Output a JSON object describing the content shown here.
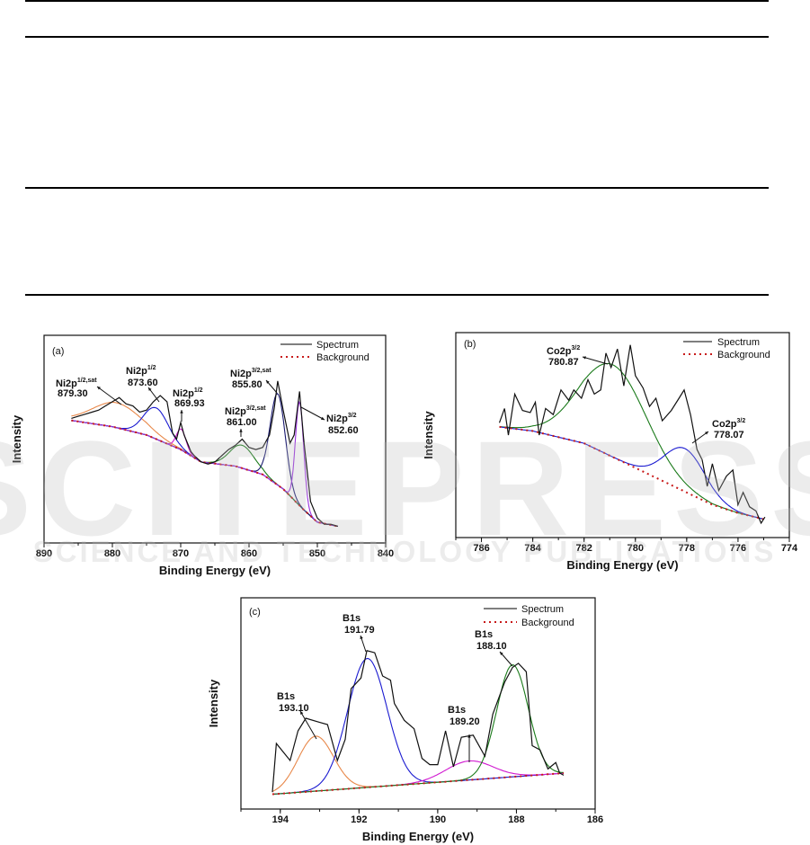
{
  "table": {
    "rules": 4
  },
  "watermark": {
    "main": "SCITEPRESS",
    "sub": "SCIENCE AND TECHNOLOGY PUBLICATIONS"
  },
  "chart_data": [
    {
      "type": "line",
      "panel": "(a)",
      "xlabel": "Binding Energy (eV)",
      "ylabel": "Intensity",
      "xlim": [
        890,
        840
      ],
      "ylim": [
        0,
        100
      ],
      "xticks": [
        "890",
        "880",
        "870",
        "860",
        "850",
        "840"
      ],
      "xtick_values": [
        890,
        880,
        870,
        860,
        850,
        840
      ],
      "legend": {
        "placement": "top-right",
        "spectrum": "Spectrum",
        "background": "Background"
      },
      "data_range": [
        886,
        847
      ],
      "background": [
        [
          886,
          59
        ],
        [
          880,
          56
        ],
        [
          875,
          52
        ],
        [
          870,
          45
        ],
        [
          867,
          39
        ],
        [
          862,
          37
        ],
        [
          858,
          33
        ],
        [
          855,
          26
        ],
        [
          852,
          16
        ],
        [
          850,
          10
        ],
        [
          847,
          8
        ]
      ],
      "components": [
        {
          "center": 879.3,
          "amp": 12,
          "sigma": 3.6,
          "color": "#e8884a"
        },
        {
          "center": 873.6,
          "amp": 15,
          "sigma": 1.8,
          "color": "#1a1ad0"
        },
        {
          "center": 869.93,
          "amp": 10,
          "sigma": 0.7,
          "color": "#d01ad0"
        },
        {
          "center": 861.0,
          "amp": 11,
          "sigma": 1.8,
          "color": "#1a7a1a"
        },
        {
          "center": 855.8,
          "amp": 44,
          "sigma": 1.1,
          "color": "#1a1a70"
        },
        {
          "center": 852.6,
          "amp": 50,
          "sigma": 0.6,
          "color": "#9a30e0"
        }
      ],
      "spectrum": [
        [
          886,
          60
        ],
        [
          885,
          61
        ],
        [
          884,
          62
        ],
        [
          883,
          63
        ],
        [
          882,
          64
        ],
        [
          881,
          66
        ],
        [
          880,
          68
        ],
        [
          879,
          70
        ],
        [
          878,
          67
        ],
        [
          877,
          66
        ],
        [
          876,
          63
        ],
        [
          875,
          64
        ],
        [
          874,
          68
        ],
        [
          873,
          71
        ],
        [
          872,
          68
        ],
        [
          871.2,
          53
        ],
        [
          870.6,
          50
        ],
        [
          870,
          58
        ],
        [
          869.5,
          52
        ],
        [
          868.5,
          44
        ],
        [
          868,
          42
        ],
        [
          867,
          39
        ],
        [
          866,
          38
        ],
        [
          865,
          39
        ],
        [
          864,
          42
        ],
        [
          863,
          45
        ],
        [
          862,
          47
        ],
        [
          861,
          50
        ],
        [
          860,
          46
        ],
        [
          859,
          45
        ],
        [
          858,
          46
        ],
        [
          857,
          52
        ],
        [
          856.3,
          65
        ],
        [
          855.8,
          78
        ],
        [
          855,
          64
        ],
        [
          854,
          48
        ],
        [
          853.4,
          52
        ],
        [
          852.6,
          73
        ],
        [
          852,
          50
        ],
        [
          851,
          20
        ],
        [
          850,
          12
        ],
        [
          849,
          9
        ],
        [
          848,
          9
        ],
        [
          847,
          8
        ]
      ],
      "annotations": [
        {
          "label": "Ni2p",
          "sup": "1/2,sat",
          "value": "879.30"
        },
        {
          "label": "Ni2p",
          "sup": "1/2",
          "value": "873.60"
        },
        {
          "label": "Ni2p",
          "sup": "1/2",
          "value": "869.93"
        },
        {
          "label": "Ni2p",
          "sup": "3/2,sat",
          "value": "855.80"
        },
        {
          "label": "Ni2p",
          "sup": "3/2,sat",
          "value": "861.00"
        },
        {
          "label": "Ni2p",
          "sup": "3/2",
          "value": "852.60"
        }
      ]
    },
    {
      "type": "line",
      "panel": "(b)",
      "xlabel": "Binding Energy (eV)",
      "ylabel": "Intensity",
      "xlim": [
        787,
        774
      ],
      "ylim": [
        0,
        100
      ],
      "xticks": [
        "786",
        "784",
        "782",
        "780",
        "778",
        "776",
        "774"
      ],
      "xtick_values": [
        786,
        784,
        782,
        780,
        778,
        776,
        774
      ],
      "legend": {
        "placement": "top-right",
        "spectrum": "Spectrum",
        "background": "Background"
      },
      "data_range": [
        785.3,
        775
      ],
      "background": [
        [
          785.3,
          54
        ],
        [
          784,
          52
        ],
        [
          782,
          46
        ],
        [
          780,
          34
        ],
        [
          778,
          22
        ],
        [
          777,
          16
        ],
        [
          776,
          12
        ],
        [
          775,
          9
        ]
      ],
      "components": [
        {
          "center": 780.87,
          "amp": 45,
          "sigma": 1.3,
          "color": "#1a7a1a"
        },
        {
          "center": 778.07,
          "amp": 21,
          "sigma": 0.8,
          "color": "#1a1ad0"
        }
      ],
      "spectrum": [
        [
          785.3,
          56
        ],
        [
          785.1,
          63
        ],
        [
          784.95,
          50
        ],
        [
          784.7,
          70
        ],
        [
          784.4,
          62
        ],
        [
          784.1,
          61
        ],
        [
          783.9,
          66
        ],
        [
          783.75,
          50
        ],
        [
          783.5,
          63
        ],
        [
          783.2,
          60
        ],
        [
          782.9,
          72
        ],
        [
          782.6,
          67
        ],
        [
          782.4,
          72
        ],
        [
          782.1,
          68
        ],
        [
          781.85,
          77
        ],
        [
          781.6,
          70
        ],
        [
          781.35,
          72
        ],
        [
          781.15,
          90
        ],
        [
          780.95,
          83
        ],
        [
          780.7,
          92
        ],
        [
          780.45,
          74
        ],
        [
          780.2,
          94
        ],
        [
          780,
          79
        ],
        [
          779.7,
          73
        ],
        [
          779.45,
          64
        ],
        [
          779.2,
          68
        ],
        [
          778.95,
          57
        ],
        [
          778.6,
          62
        ],
        [
          778.3,
          68
        ],
        [
          778.1,
          72
        ],
        [
          777.85,
          60
        ],
        [
          777.6,
          43
        ],
        [
          777.4,
          38
        ],
        [
          777.2,
          25
        ],
        [
          777,
          36
        ],
        [
          776.75,
          23
        ],
        [
          776.45,
          30
        ],
        [
          776.2,
          33
        ],
        [
          776,
          16
        ],
        [
          775.8,
          22
        ],
        [
          775.55,
          15
        ],
        [
          775.3,
          13
        ],
        [
          775.1,
          7
        ],
        [
          774.95,
          10
        ]
      ],
      "annotations": [
        {
          "label": "Co2p",
          "sup": "3/2",
          "value": "780.87"
        },
        {
          "label": "Co2p",
          "sup": "3/2",
          "value": "778.07"
        }
      ]
    },
    {
      "type": "line",
      "panel": "(c)",
      "xlabel": "Binding Energy (eV)",
      "ylabel": "Intensity",
      "xlim": [
        195,
        186
      ],
      "ylim": [
        0,
        100
      ],
      "xticks": [
        "194",
        "192",
        "190",
        "188",
        "186"
      ],
      "xtick_values": [
        194,
        192,
        190,
        188,
        186
      ],
      "legend": {
        "placement": "top-right",
        "spectrum": "Spectrum",
        "background": "Background"
      },
      "data_range": [
        194.2,
        186.8
      ],
      "background": [
        [
          194.2,
          7
        ],
        [
          186.8,
          17
        ]
      ],
      "components": [
        {
          "center": 193.1,
          "amp": 26,
          "sigma": 0.45,
          "color": "#e8884a"
        },
        {
          "center": 191.79,
          "amp": 61,
          "sigma": 0.5,
          "color": "#1a1ad0"
        },
        {
          "center": 189.2,
          "amp": 9,
          "sigma": 0.6,
          "color": "#d01ad0"
        },
        {
          "center": 188.1,
          "amp": 53,
          "sigma": 0.4,
          "color": "#1a7a1a"
        }
      ],
      "spectrum": [
        [
          194.2,
          8
        ],
        [
          194.1,
          31
        ],
        [
          193.75,
          23
        ],
        [
          193.55,
          37
        ],
        [
          193.35,
          43
        ],
        [
          193.0,
          41
        ],
        [
          192.8,
          40
        ],
        [
          192.55,
          23
        ],
        [
          192.35,
          33
        ],
        [
          192.2,
          57
        ],
        [
          191.95,
          62
        ],
        [
          191.8,
          75
        ],
        [
          191.6,
          74
        ],
        [
          191.4,
          63
        ],
        [
          191.2,
          61
        ],
        [
          191.1,
          50
        ],
        [
          190.85,
          42
        ],
        [
          190.6,
          38
        ],
        [
          190.4,
          24
        ],
        [
          190.2,
          21
        ],
        [
          190,
          21
        ],
        [
          189.8,
          37
        ],
        [
          189.6,
          20
        ],
        [
          189.4,
          34
        ],
        [
          189.1,
          35
        ],
        [
          188.8,
          25
        ],
        [
          188.6,
          45
        ],
        [
          188.3,
          60
        ],
        [
          188.1,
          67
        ],
        [
          187.95,
          69
        ],
        [
          187.75,
          65
        ],
        [
          187.6,
          30
        ],
        [
          187.4,
          28
        ],
        [
          187.2,
          19
        ],
        [
          187,
          22
        ],
        [
          186.9,
          17
        ],
        [
          186.8,
          16
        ]
      ],
      "annotations": [
        {
          "label": "B1s",
          "sup": "",
          "value": "193.10"
        },
        {
          "label": "B1s",
          "sup": "",
          "value": "191.79"
        },
        {
          "label": "B1s",
          "sup": "",
          "value": "189.20"
        },
        {
          "label": "B1s",
          "sup": "",
          "value": "188.10"
        }
      ]
    }
  ]
}
